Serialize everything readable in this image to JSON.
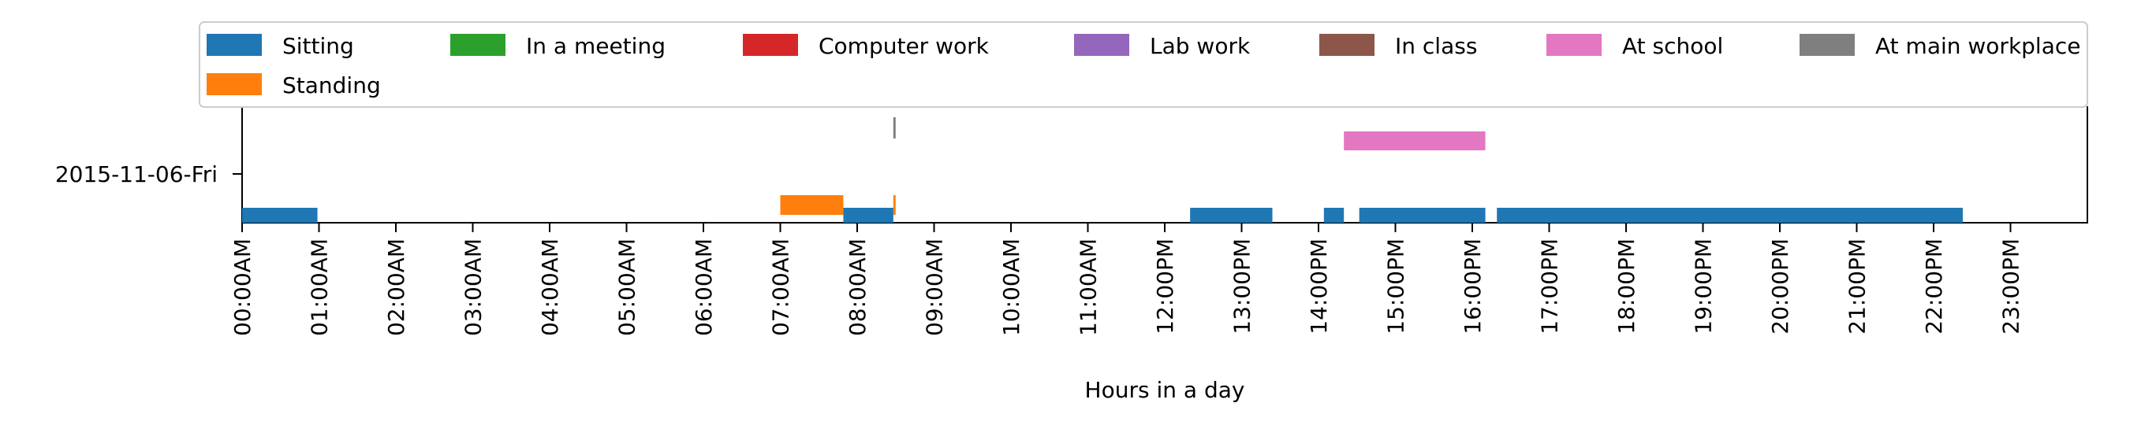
{
  "chart_data": {
    "type": "timeline",
    "xlabel": "Hours in a day",
    "xlim": [
      0,
      24
    ],
    "x_ticks": [
      {
        "value": 0,
        "label": "00:00AM"
      },
      {
        "value": 1,
        "label": "01:00AM"
      },
      {
        "value": 2,
        "label": "02:00AM"
      },
      {
        "value": 3,
        "label": "03:00AM"
      },
      {
        "value": 4,
        "label": "04:00AM"
      },
      {
        "value": 5,
        "label": "05:00AM"
      },
      {
        "value": 6,
        "label": "06:00AM"
      },
      {
        "value": 7,
        "label": "07:00AM"
      },
      {
        "value": 8,
        "label": "08:00AM"
      },
      {
        "value": 9,
        "label": "09:00AM"
      },
      {
        "value": 10,
        "label": "10:00AM"
      },
      {
        "value": 11,
        "label": "11:00AM"
      },
      {
        "value": 12,
        "label": "12:00PM"
      },
      {
        "value": 13,
        "label": "13:00PM"
      },
      {
        "value": 14,
        "label": "14:00PM"
      },
      {
        "value": 15,
        "label": "15:00PM"
      },
      {
        "value": 16,
        "label": "16:00PM"
      },
      {
        "value": 17,
        "label": "17:00PM"
      },
      {
        "value": 18,
        "label": "18:00PM"
      },
      {
        "value": 19,
        "label": "19:00PM"
      },
      {
        "value": 20,
        "label": "20:00PM"
      },
      {
        "value": 21,
        "label": "21:00PM"
      },
      {
        "value": 22,
        "label": "22:00PM"
      },
      {
        "value": 23,
        "label": "23:00PM"
      }
    ],
    "y_categories": [
      "2015-11-06-Fri"
    ],
    "legend": {
      "placement": "top",
      "columns": 7,
      "entries": [
        {
          "name": "Sitting",
          "color": "#1f77b4"
        },
        {
          "name": "In a meeting",
          "color": "#2ca02c"
        },
        {
          "name": "Computer work",
          "color": "#d62728"
        },
        {
          "name": "Lab work",
          "color": "#9467bd"
        },
        {
          "name": "In class",
          "color": "#8c564b"
        },
        {
          "name": "At school",
          "color": "#e377c2"
        },
        {
          "name": "At main workplace",
          "color": "#7f7f7f"
        },
        {
          "name": "Standing",
          "color": "#ff7f0e"
        }
      ]
    },
    "series": [
      {
        "name": "Sitting",
        "color": "#1f77b4",
        "lane": "Sitting",
        "segments": [
          [
            0.0,
            0.98
          ],
          [
            7.82,
            8.47
          ],
          [
            12.33,
            13.4
          ],
          [
            14.07,
            14.33
          ],
          [
            14.53,
            16.17
          ],
          [
            16.32,
            22.38
          ]
        ]
      },
      {
        "name": "Standing",
        "color": "#ff7f0e",
        "lane": "Standing",
        "segments": [
          [
            7.0,
            7.82
          ],
          [
            8.47,
            8.5
          ]
        ]
      },
      {
        "name": "At school",
        "color": "#e377c2",
        "lane": "At school",
        "segments": [
          [
            14.33,
            16.17
          ]
        ]
      },
      {
        "name": "At main workplace",
        "color": "#7f7f7f",
        "lane": "At main workplace",
        "segments": [
          [
            8.47,
            8.5
          ]
        ]
      }
    ]
  }
}
